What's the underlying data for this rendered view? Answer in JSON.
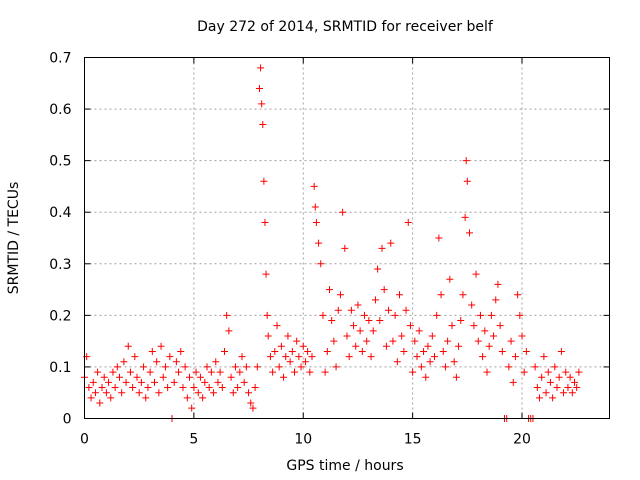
{
  "chart_data": {
    "type": "scatter",
    "title": "Day 272 of 2014, SRMTID for receiver belf",
    "xlabel": "GPS time / hours",
    "ylabel": "SRMTID / TECUs",
    "xlim": [
      0,
      24
    ],
    "ylim": [
      0,
      0.7
    ],
    "xticks": [
      0,
      5,
      10,
      15,
      20
    ],
    "yticks": [
      0,
      0.1,
      0.2,
      0.3,
      0.4,
      0.5,
      0.6,
      0.7
    ],
    "xtick_labels": [
      "0",
      "5",
      "10",
      "15",
      "20"
    ],
    "ytick_labels": [
      "0",
      "0.1",
      "0.2",
      "0.3",
      "0.4",
      "0.5",
      "0.6",
      "0.7"
    ],
    "grid": true,
    "marker": "+",
    "color": "#ff0000",
    "series": [
      {
        "name": "SRMTID",
        "points": [
          [
            0.0,
            0.08
          ],
          [
            0.1,
            0.12
          ],
          [
            0.2,
            0.06
          ],
          [
            0.3,
            0.04
          ],
          [
            0.4,
            0.07
          ],
          [
            0.5,
            0.05
          ],
          [
            0.6,
            0.09
          ],
          [
            0.7,
            0.03
          ],
          [
            0.8,
            0.06
          ],
          [
            0.9,
            0.08
          ],
          [
            1.0,
            0.05
          ],
          [
            1.1,
            0.07
          ],
          [
            1.2,
            0.04
          ],
          [
            1.3,
            0.09
          ],
          [
            1.4,
            0.06
          ],
          [
            1.5,
            0.1
          ],
          [
            1.6,
            0.08
          ],
          [
            1.7,
            0.05
          ],
          [
            1.8,
            0.11
          ],
          [
            1.9,
            0.07
          ],
          [
            2.0,
            0.14
          ],
          [
            2.1,
            0.09
          ],
          [
            2.2,
            0.06
          ],
          [
            2.3,
            0.12
          ],
          [
            2.4,
            0.08
          ],
          [
            2.5,
            0.05
          ],
          [
            2.6,
            0.07
          ],
          [
            2.7,
            0.1
          ],
          [
            2.8,
            0.04
          ],
          [
            2.9,
            0.06
          ],
          [
            3.0,
            0.09
          ],
          [
            3.1,
            0.13
          ],
          [
            3.2,
            0.07
          ],
          [
            3.3,
            0.11
          ],
          [
            3.4,
            0.05
          ],
          [
            3.5,
            0.14
          ],
          [
            3.6,
            0.08
          ],
          [
            3.7,
            0.1
          ],
          [
            3.8,
            0.06
          ],
          [
            3.9,
            0.12
          ],
          [
            4.0,
            0.0
          ],
          [
            4.1,
            0.07
          ],
          [
            4.2,
            0.11
          ],
          [
            4.3,
            0.09
          ],
          [
            4.4,
            0.13
          ],
          [
            4.5,
            0.06
          ],
          [
            4.6,
            0.1
          ],
          [
            4.7,
            0.04
          ],
          [
            4.8,
            0.08
          ],
          [
            4.9,
            0.02
          ],
          [
            5.0,
            0.06
          ],
          [
            5.1,
            0.09
          ],
          [
            5.2,
            0.05
          ],
          [
            5.3,
            0.08
          ],
          [
            5.4,
            0.04
          ],
          [
            5.5,
            0.07
          ],
          [
            5.6,
            0.1
          ],
          [
            5.7,
            0.06
          ],
          [
            5.8,
            0.09
          ],
          [
            5.9,
            0.05
          ],
          [
            6.0,
            0.11
          ],
          [
            6.1,
            0.07
          ],
          [
            6.2,
            0.09
          ],
          [
            6.3,
            0.06
          ],
          [
            6.4,
            0.13
          ],
          [
            6.5,
            0.2
          ],
          [
            6.6,
            0.17
          ],
          [
            6.7,
            0.08
          ],
          [
            6.8,
            0.05
          ],
          [
            6.9,
            0.1
          ],
          [
            7.0,
            0.06
          ],
          [
            7.1,
            0.09
          ],
          [
            7.2,
            0.12
          ],
          [
            7.3,
            0.07
          ],
          [
            7.4,
            0.1
          ],
          [
            7.5,
            0.05
          ],
          [
            7.6,
            0.03
          ],
          [
            7.7,
            0.02
          ],
          [
            7.8,
            0.06
          ],
          [
            7.9,
            0.1
          ],
          [
            8.0,
            0.64
          ],
          [
            8.05,
            0.68
          ],
          [
            8.1,
            0.61
          ],
          [
            8.15,
            0.57
          ],
          [
            8.2,
            0.46
          ],
          [
            8.25,
            0.38
          ],
          [
            8.3,
            0.28
          ],
          [
            8.35,
            0.2
          ],
          [
            8.4,
            0.16
          ],
          [
            8.5,
            0.12
          ],
          [
            8.6,
            0.09
          ],
          [
            8.7,
            0.13
          ],
          [
            8.8,
            0.18
          ],
          [
            8.9,
            0.1
          ],
          [
            9.0,
            0.14
          ],
          [
            9.1,
            0.08
          ],
          [
            9.2,
            0.12
          ],
          [
            9.3,
            0.16
          ],
          [
            9.4,
            0.11
          ],
          [
            9.5,
            0.13
          ],
          [
            9.6,
            0.09
          ],
          [
            9.7,
            0.15
          ],
          [
            9.8,
            0.12
          ],
          [
            9.9,
            0.1
          ],
          [
            10.0,
            0.14
          ],
          [
            10.1,
            0.11
          ],
          [
            10.2,
            0.13
          ],
          [
            10.3,
            0.09
          ],
          [
            10.4,
            0.12
          ],
          [
            10.5,
            0.45
          ],
          [
            10.55,
            0.41
          ],
          [
            10.6,
            0.38
          ],
          [
            10.7,
            0.34
          ],
          [
            10.8,
            0.3
          ],
          [
            10.9,
            0.2
          ],
          [
            11.0,
            0.09
          ],
          [
            11.1,
            0.13
          ],
          [
            11.2,
            0.25
          ],
          [
            11.3,
            0.19
          ],
          [
            11.4,
            0.15
          ],
          [
            11.5,
            0.1
          ],
          [
            11.6,
            0.21
          ],
          [
            11.7,
            0.24
          ],
          [
            11.8,
            0.4
          ],
          [
            11.9,
            0.33
          ],
          [
            12.0,
            0.16
          ],
          [
            12.1,
            0.12
          ],
          [
            12.2,
            0.21
          ],
          [
            12.3,
            0.18
          ],
          [
            12.4,
            0.14
          ],
          [
            12.5,
            0.22
          ],
          [
            12.6,
            0.17
          ],
          [
            12.7,
            0.13
          ],
          [
            12.8,
            0.2
          ],
          [
            12.9,
            0.15
          ],
          [
            13.0,
            0.19
          ],
          [
            13.1,
            0.12
          ],
          [
            13.2,
            0.17
          ],
          [
            13.3,
            0.23
          ],
          [
            13.4,
            0.29
          ],
          [
            13.5,
            0.19
          ],
          [
            13.6,
            0.33
          ],
          [
            13.7,
            0.25
          ],
          [
            13.8,
            0.14
          ],
          [
            13.9,
            0.21
          ],
          [
            14.0,
            0.34
          ],
          [
            14.1,
            0.15
          ],
          [
            14.2,
            0.2
          ],
          [
            14.3,
            0.11
          ],
          [
            14.4,
            0.24
          ],
          [
            14.5,
            0.16
          ],
          [
            14.6,
            0.13
          ],
          [
            14.7,
            0.21
          ],
          [
            14.8,
            0.38
          ],
          [
            14.9,
            0.18
          ],
          [
            15.0,
            0.09
          ],
          [
            15.1,
            0.15
          ],
          [
            15.2,
            0.12
          ],
          [
            15.3,
            0.17
          ],
          [
            15.4,
            0.1
          ],
          [
            15.5,
            0.13
          ],
          [
            15.6,
            0.08
          ],
          [
            15.7,
            0.14
          ],
          [
            15.8,
            0.11
          ],
          [
            15.9,
            0.16
          ],
          [
            16.0,
            0.12
          ],
          [
            16.1,
            0.2
          ],
          [
            16.2,
            0.35
          ],
          [
            16.3,
            0.24
          ],
          [
            16.4,
            0.13
          ],
          [
            16.5,
            0.1
          ],
          [
            16.6,
            0.15
          ],
          [
            16.7,
            0.27
          ],
          [
            16.8,
            0.18
          ],
          [
            16.9,
            0.11
          ],
          [
            17.0,
            0.08
          ],
          [
            17.1,
            0.14
          ],
          [
            17.2,
            0.19
          ],
          [
            17.3,
            0.24
          ],
          [
            17.4,
            0.39
          ],
          [
            17.45,
            0.5
          ],
          [
            17.5,
            0.46
          ],
          [
            17.6,
            0.36
          ],
          [
            17.7,
            0.22
          ],
          [
            17.8,
            0.18
          ],
          [
            17.9,
            0.28
          ],
          [
            18.0,
            0.15
          ],
          [
            18.1,
            0.2
          ],
          [
            18.2,
            0.12
          ],
          [
            18.3,
            0.17
          ],
          [
            18.4,
            0.09
          ],
          [
            18.5,
            0.14
          ],
          [
            18.6,
            0.2
          ],
          [
            18.7,
            0.16
          ],
          [
            18.8,
            0.23
          ],
          [
            18.9,
            0.26
          ],
          [
            19.0,
            0.18
          ],
          [
            19.1,
            0.13
          ],
          [
            19.2,
            0.0
          ],
          [
            19.3,
            0.0
          ],
          [
            19.4,
            0.1
          ],
          [
            19.5,
            0.15
          ],
          [
            19.6,
            0.07
          ],
          [
            19.7,
            0.12
          ],
          [
            19.8,
            0.24
          ],
          [
            19.9,
            0.2
          ],
          [
            20.0,
            0.16
          ],
          [
            20.1,
            0.09
          ],
          [
            20.2,
            0.13
          ],
          [
            20.3,
            0.0
          ],
          [
            20.4,
            0.0
          ],
          [
            20.5,
            0.0
          ],
          [
            20.6,
            0.1
          ],
          [
            20.7,
            0.06
          ],
          [
            20.8,
            0.04
          ],
          [
            20.9,
            0.08
          ],
          [
            21.0,
            0.12
          ],
          [
            21.1,
            0.05
          ],
          [
            21.2,
            0.09
          ],
          [
            21.3,
            0.07
          ],
          [
            21.4,
            0.04
          ],
          [
            21.5,
            0.1
          ],
          [
            21.6,
            0.06
          ],
          [
            21.7,
            0.08
          ],
          [
            21.8,
            0.13
          ],
          [
            21.9,
            0.05
          ],
          [
            22.0,
            0.09
          ],
          [
            22.1,
            0.06
          ],
          [
            22.2,
            0.08
          ],
          [
            22.3,
            0.05
          ],
          [
            22.4,
            0.07
          ],
          [
            22.5,
            0.06
          ],
          [
            22.6,
            0.09
          ]
        ]
      }
    ]
  }
}
